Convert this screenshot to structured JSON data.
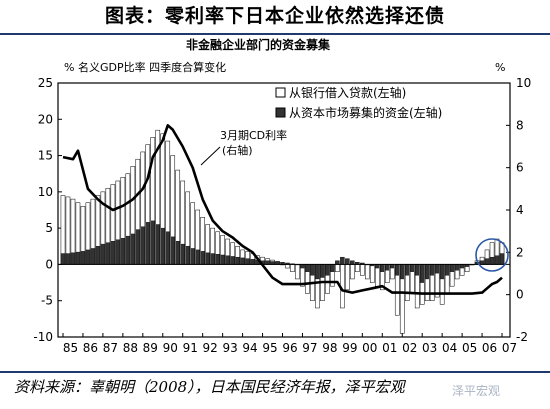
{
  "page_title": "图表：零利率下日本企业依然选择还债",
  "source_note": "资料来源：辜朝明（2008），日本国民经济年报，泽平宏观",
  "watermark": "泽平宏观",
  "chart_data": {
    "type": "bar",
    "title": "非金融企业部门的资金募集",
    "ylabel_left": "% 名义GDP比率 四季度合算变化",
    "ylabel_right": "%",
    "ylim_left": [
      -10,
      25
    ],
    "ylim_right": [
      -2,
      10
    ],
    "yticks_left": [
      "25",
      "20",
      "15",
      "10",
      "5",
      "0",
      "-5",
      "-10"
    ],
    "yticks_right": [
      "10",
      "8",
      "6",
      "4",
      "2",
      "0",
      "-2"
    ],
    "xticks": [
      "85",
      "86",
      "87",
      "88",
      "89",
      "90",
      "91",
      "92",
      "93",
      "94",
      "95",
      "96",
      "97",
      "98",
      "99",
      "00",
      "01",
      "02",
      "03",
      "04",
      "05",
      "06",
      "07"
    ],
    "legend": [
      "从银行借入贷款(左轴)",
      "从资本市场募集的资金(左轴)"
    ],
    "annotation": [
      "3月期CD利率",
      "(右轴)"
    ],
    "series": [
      {
        "name": "从银行借入贷款(左轴)",
        "axis": "left",
        "x": [
          1985.0,
          1985.25,
          1985.5,
          1985.75,
          1986.0,
          1986.25,
          1986.5,
          1986.75,
          1987.0,
          1987.25,
          1987.5,
          1987.75,
          1988.0,
          1988.25,
          1988.5,
          1988.75,
          1989.0,
          1989.25,
          1989.5,
          1989.75,
          1990.0,
          1990.25,
          1990.5,
          1990.75,
          1991.0,
          1991.25,
          1991.5,
          1991.75,
          1992.0,
          1992.25,
          1992.5,
          1992.75,
          1993.0,
          1993.25,
          1993.5,
          1993.75,
          1994.0,
          1994.25,
          1994.5,
          1994.75,
          1995.0,
          1995.25,
          1995.5,
          1995.75,
          1996.0,
          1996.25,
          1996.5,
          1996.75,
          1997.0,
          1997.25,
          1997.5,
          1997.75,
          1998.0,
          1998.25,
          1998.5,
          1998.75,
          1999.0,
          1999.25,
          1999.5,
          1999.75,
          2000.0,
          2000.25,
          2000.5,
          2000.75,
          2001.0,
          2001.25,
          2001.5,
          2001.75,
          2002.0,
          2002.25,
          2002.5,
          2002.75,
          2003.0,
          2003.25,
          2003.5,
          2003.75,
          2004.0,
          2004.25,
          2004.5,
          2004.75,
          2005.0,
          2005.25,
          2005.5,
          2005.75,
          2006.0,
          2006.25,
          2006.5,
          2006.75,
          2007.0
        ],
        "values": [
          9.5,
          9.3,
          9.0,
          8.5,
          8.0,
          8.5,
          9.0,
          9.5,
          10.0,
          10.5,
          11.0,
          11.5,
          12.0,
          12.5,
          13.5,
          14.5,
          15.5,
          16.5,
          17.5,
          18.5,
          18.0,
          17.0,
          15.0,
          13.0,
          11.5,
          10.0,
          8.5,
          7.5,
          6.5,
          5.5,
          5.0,
          4.5,
          4.0,
          3.5,
          3.0,
          2.5,
          2.0,
          1.8,
          1.5,
          1.2,
          1.0,
          0.8,
          0.6,
          0.4,
          0.0,
          -0.5,
          -1.0,
          -2.0,
          -3.0,
          -4.0,
          -5.0,
          -6.0,
          -5.0,
          -4.0,
          -3.0,
          -1.0,
          -6.0,
          -3.5,
          -2.0,
          -1.0,
          -1.5,
          -2.0,
          -2.5,
          -3.0,
          -3.5,
          -2.5,
          -2.0,
          -7.0,
          -9.5,
          -5.0,
          -4.0,
          -6.0,
          -5.5,
          -5.0,
          -5.0,
          -4.5,
          -5.5,
          -4.0,
          -3.0,
          -2.0,
          -1.5,
          -1.0,
          0.0,
          0.5,
          1.0,
          2.0,
          3.0,
          3.5,
          3.0
        ]
      },
      {
        "name": "从资本市场募集的资金(左轴)",
        "axis": "left",
        "x": [
          1985.0,
          1985.25,
          1985.5,
          1985.75,
          1986.0,
          1986.25,
          1986.5,
          1986.75,
          1987.0,
          1987.25,
          1987.5,
          1987.75,
          1988.0,
          1988.25,
          1988.5,
          1988.75,
          1989.0,
          1989.25,
          1989.5,
          1989.75,
          1990.0,
          1990.25,
          1990.5,
          1990.75,
          1991.0,
          1991.25,
          1991.5,
          1991.75,
          1992.0,
          1992.25,
          1992.5,
          1992.75,
          1993.0,
          1993.25,
          1993.5,
          1993.75,
          1994.0,
          1994.25,
          1994.5,
          1994.75,
          1995.0,
          1995.25,
          1995.5,
          1995.75,
          1996.0,
          1996.25,
          1996.5,
          1996.75,
          1997.0,
          1997.25,
          1997.5,
          1997.75,
          1998.0,
          1998.25,
          1998.5,
          1998.75,
          1999.0,
          1999.25,
          1999.5,
          1999.75,
          2000.0,
          2000.25,
          2000.5,
          2000.75,
          2001.0,
          2001.25,
          2001.5,
          2001.75,
          2002.0,
          2002.25,
          2002.5,
          2002.75,
          2003.0,
          2003.25,
          2003.5,
          2003.75,
          2004.0,
          2004.25,
          2004.5,
          2004.75,
          2005.0,
          2005.25,
          2005.5,
          2005.75,
          2006.0,
          2006.25,
          2006.5,
          2006.75,
          2007.0
        ],
        "values": [
          1.5,
          1.5,
          1.6,
          1.7,
          1.8,
          2.0,
          2.2,
          2.5,
          2.8,
          3.0,
          3.2,
          3.4,
          3.6,
          3.9,
          4.2,
          4.8,
          5.2,
          5.8,
          6.0,
          5.5,
          5.0,
          4.5,
          3.8,
          3.2,
          2.8,
          2.5,
          2.2,
          2.0,
          1.8,
          1.6,
          1.5,
          1.4,
          1.3,
          1.2,
          1.1,
          1.0,
          0.9,
          0.8,
          0.7,
          0.6,
          0.5,
          0.5,
          0.4,
          0.4,
          0.3,
          0.2,
          0.1,
          0.0,
          -0.5,
          -1.0,
          -1.5,
          -2.0,
          -1.8,
          -1.5,
          -1.0,
          0.5,
          1.0,
          0.8,
          0.5,
          0.3,
          0.2,
          0.0,
          -0.2,
          -0.5,
          -1.0,
          -0.8,
          -0.5,
          -1.5,
          -2.0,
          -1.5,
          -1.0,
          -1.5,
          -2.5,
          -2.0,
          -1.5,
          -1.2,
          -2.0,
          -1.5,
          -1.0,
          -0.8,
          -0.5,
          -0.3,
          0.0,
          0.3,
          0.5,
          0.8,
          1.0,
          1.2,
          1.5
        ]
      },
      {
        "name": "3月期CD利率(右轴)",
        "axis": "right",
        "type": "line",
        "x": [
          1985.0,
          1985.5,
          1985.75,
          1986.25,
          1986.75,
          1987.0,
          1987.5,
          1988.0,
          1988.5,
          1989.0,
          1989.25,
          1989.5,
          1990.0,
          1990.25,
          1990.5,
          1991.0,
          1991.5,
          1992.0,
          1992.5,
          1993.0,
          1993.5,
          1994.0,
          1994.5,
          1995.0,
          1995.5,
          1996.0,
          1997.0,
          1998.0,
          1998.75,
          1999.0,
          1999.5,
          2000.0,
          2000.5,
          2001.0,
          2001.5,
          2002.0,
          2003.0,
          2004.0,
          2005.0,
          2005.5,
          2006.0,
          2006.25,
          2006.5,
          2006.75,
          2007.0
        ],
        "values": [
          6.5,
          6.4,
          6.8,
          5.0,
          4.5,
          4.3,
          4.0,
          4.2,
          4.5,
          5.0,
          5.5,
          6.5,
          7.3,
          8.0,
          7.8,
          7.0,
          6.0,
          4.5,
          3.5,
          3.0,
          2.7,
          2.3,
          2.0,
          1.4,
          0.8,
          0.5,
          0.5,
          0.6,
          0.6,
          0.2,
          0.1,
          0.2,
          0.3,
          0.4,
          0.1,
          0.1,
          0.05,
          0.05,
          0.05,
          0.05,
          0.1,
          0.3,
          0.5,
          0.6,
          0.8
        ]
      }
    ]
  }
}
